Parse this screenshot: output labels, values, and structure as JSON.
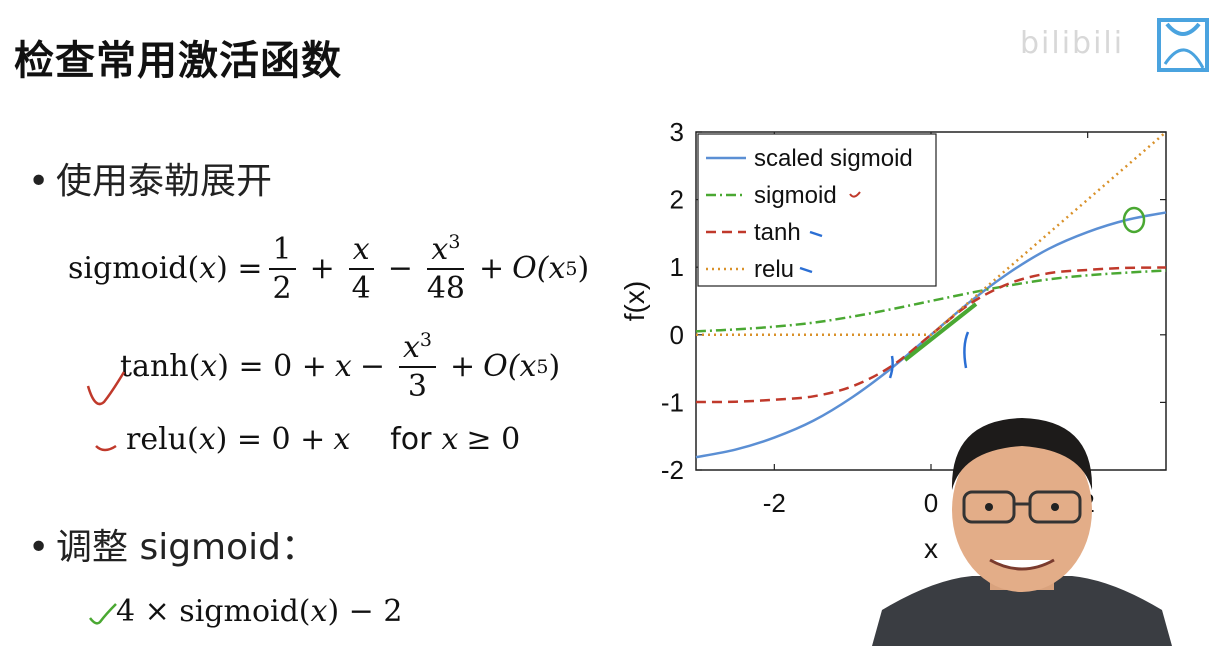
{
  "title": "检查常用激活函数",
  "watermark": "bilibili",
  "bullets": {
    "taylor": "使用泰勒展开",
    "adjust": "调整 sigmoid："
  },
  "formulas": {
    "sigmoid": {
      "lhs": "sigmoid(",
      "var": "x",
      "rhs": ") =",
      "f1n": "1",
      "f1d": "2",
      "plus1": "+",
      "f2n": "x",
      "f2d": "4",
      "minus": "−",
      "f3n": "x",
      "f3s": "3",
      "f3d": "48",
      "plus2": "+",
      "o": "O(",
      "ox": "x",
      "os": "5",
      "oc": ")"
    },
    "tanh": {
      "lhs": "tanh(",
      "var": "x",
      "rhs": ") = 0 +",
      "x": "x",
      "minus": "−",
      "fn": "x",
      "fs": "3",
      "fd": "3",
      "plus": "+",
      "o": "O(",
      "ox": "x",
      "os": "5",
      "oc": ")"
    },
    "relu": {
      "lhs": "relu(",
      "var": "x",
      "rhs": ") = 0 +",
      "x": "x",
      "for": "for",
      "cx": "x",
      "cond": "≥ 0"
    },
    "scaled": {
      "text": "4 × sigmoid(",
      "var": "x",
      "rest": ") − 2"
    }
  },
  "chart_data": {
    "type": "line",
    "xlabel": "x",
    "ylabel": "f(x)",
    "xlim": [
      -3,
      3
    ],
    "ylim": [
      -2,
      3
    ],
    "xticks": [
      "-2",
      "0",
      "2"
    ],
    "xtick_values": [
      -2,
      0,
      2
    ],
    "yticks": [
      "-2",
      "-1",
      "0",
      "1",
      "2",
      "3"
    ],
    "ytick_values": [
      -2,
      -1,
      0,
      1,
      2,
      3
    ],
    "legend_position": "top-left",
    "series": [
      {
        "name": "scaled sigmoid",
        "color": "#5b8fd4",
        "dash": "solid",
        "x": [
          -3,
          -2.5,
          -2,
          -1.5,
          -1,
          -0.5,
          0,
          0.5,
          1,
          1.5,
          2,
          2.5,
          3
        ],
        "y": [
          -1.81,
          -1.7,
          -1.52,
          -1.27,
          -0.92,
          -0.49,
          0,
          0.49,
          0.92,
          1.27,
          1.52,
          1.7,
          1.81
        ]
      },
      {
        "name": "sigmoid",
        "color": "#4aa832",
        "dash": "dashdot",
        "x": [
          -3,
          -2.5,
          -2,
          -1.5,
          -1,
          -0.5,
          0,
          0.5,
          1,
          1.5,
          2,
          2.5,
          3
        ],
        "y": [
          0.05,
          0.08,
          0.12,
          0.18,
          0.27,
          0.38,
          0.5,
          0.62,
          0.73,
          0.82,
          0.88,
          0.92,
          0.95
        ]
      },
      {
        "name": "tanh",
        "color": "#c0392b",
        "dash": "dashed",
        "x": [
          -3,
          -2.5,
          -2,
          -1.5,
          -1,
          -0.5,
          0,
          0.5,
          1,
          1.5,
          2,
          2.5,
          3
        ],
        "y": [
          -0.995,
          -0.99,
          -0.96,
          -0.91,
          -0.76,
          -0.46,
          0,
          0.46,
          0.76,
          0.91,
          0.96,
          0.99,
          0.995
        ]
      },
      {
        "name": "relu",
        "color": "#d9912a",
        "dash": "dotted",
        "x": [
          -3,
          0,
          3
        ],
        "y": [
          0,
          0,
          3
        ]
      }
    ]
  }
}
